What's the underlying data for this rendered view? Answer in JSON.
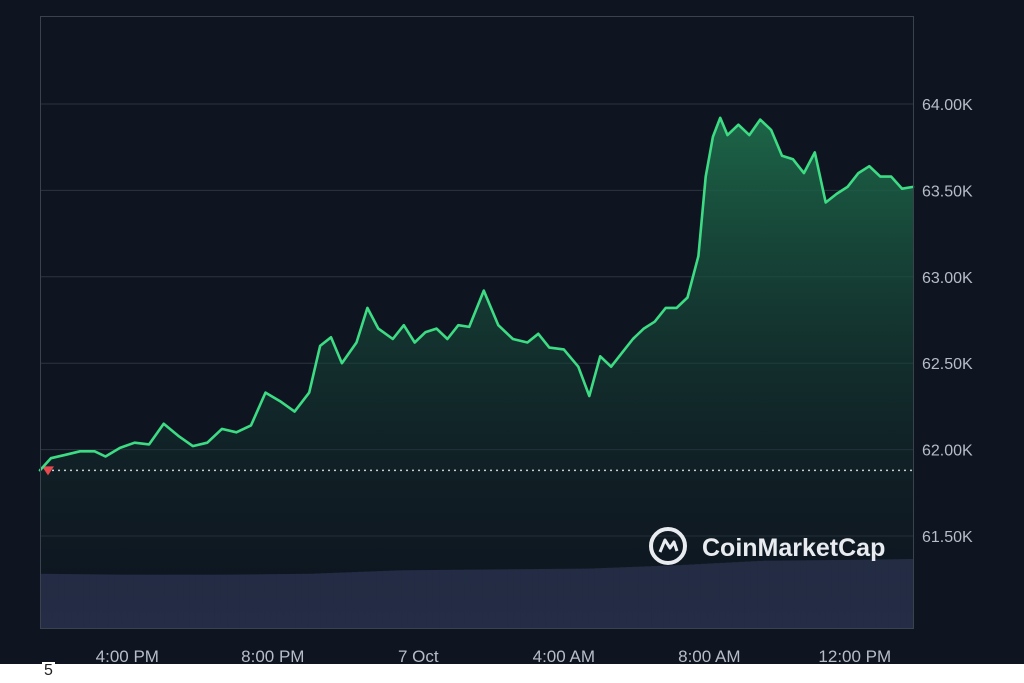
{
  "chart_data": {
    "type": "area",
    "title": "",
    "watermark": "CoinMarketCap",
    "y_ticks": [
      "64.00K",
      "63.50K",
      "63.00K",
      "62.50K",
      "62.00K",
      "61.50K"
    ],
    "y_tick_values": [
      64000,
      63500,
      63000,
      62500,
      62000,
      61500
    ],
    "x_ticks": [
      "4:00 PM",
      "8:00 PM",
      "7 Oct",
      "4:00 AM",
      "8:00 AM",
      "12:00 PM"
    ],
    "x_tick_hours": [
      16,
      20,
      24,
      28,
      32,
      36
    ],
    "x_range_hours": [
      13.6,
      37.6
    ],
    "ylim": [
      61000,
      64500
    ],
    "reference_price": 61880,
    "price_hours": [
      13.6,
      13.9,
      14.3,
      14.7,
      15.1,
      15.4,
      15.8,
      16.2,
      16.6,
      17.0,
      17.4,
      17.8,
      18.2,
      18.6,
      19.0,
      19.4,
      19.8,
      20.2,
      20.6,
      21.0,
      21.3,
      21.6,
      21.9,
      22.3,
      22.6,
      22.9,
      23.3,
      23.6,
      23.9,
      24.2,
      24.5,
      24.8,
      25.1,
      25.4,
      25.8,
      26.2,
      26.6,
      27.0,
      27.3,
      27.6,
      28.0,
      28.4,
      28.7,
      29.0,
      29.3,
      29.6,
      29.9,
      30.2,
      30.5,
      30.8,
      31.1,
      31.4,
      31.7,
      31.9,
      32.1,
      32.3,
      32.5,
      32.8,
      33.1,
      33.4,
      33.7,
      34.0,
      34.3,
      34.6,
      34.9,
      35.2,
      35.5,
      35.8,
      36.1,
      36.4,
      36.7,
      37.0,
      37.3,
      37.6
    ],
    "price_values": [
      61880,
      61950,
      61970,
      61990,
      61990,
      61960,
      62010,
      62040,
      62030,
      62150,
      62080,
      62020,
      62040,
      62120,
      62100,
      62140,
      62330,
      62280,
      62220,
      62330,
      62600,
      62650,
      62500,
      62620,
      62820,
      62700,
      62640,
      62720,
      62620,
      62680,
      62700,
      62640,
      62720,
      62710,
      62920,
      62720,
      62640,
      62620,
      62670,
      62590,
      62580,
      62480,
      62310,
      62540,
      62480,
      62560,
      62640,
      62700,
      62740,
      62820,
      62820,
      62880,
      63120,
      63580,
      63810,
      63920,
      63820,
      63880,
      63820,
      63910,
      63850,
      63700,
      63680,
      63600,
      63720,
      63430,
      63480,
      63520,
      63600,
      63640,
      63580,
      63580,
      63510,
      63520
    ],
    "volume_hours": [
      13.6,
      16.0,
      18.6,
      21.0,
      23.5,
      26.0,
      28.7,
      31.2,
      33.5,
      36.0,
      37.6
    ],
    "volume_relative": [
      0.62,
      0.61,
      0.61,
      0.62,
      0.66,
      0.67,
      0.68,
      0.72,
      0.77,
      0.78,
      0.79
    ],
    "colors": {
      "line": "#3ddc84",
      "area_top": "#1d6a4a",
      "area_bottom": "#0e1520",
      "volume": "#29304d",
      "reference_marker": "#e5484d",
      "reference_line": "#c8cdd5",
      "background": "#0e1520",
      "grid": "#2c3440"
    },
    "grid": true
  },
  "corner_note": "5"
}
